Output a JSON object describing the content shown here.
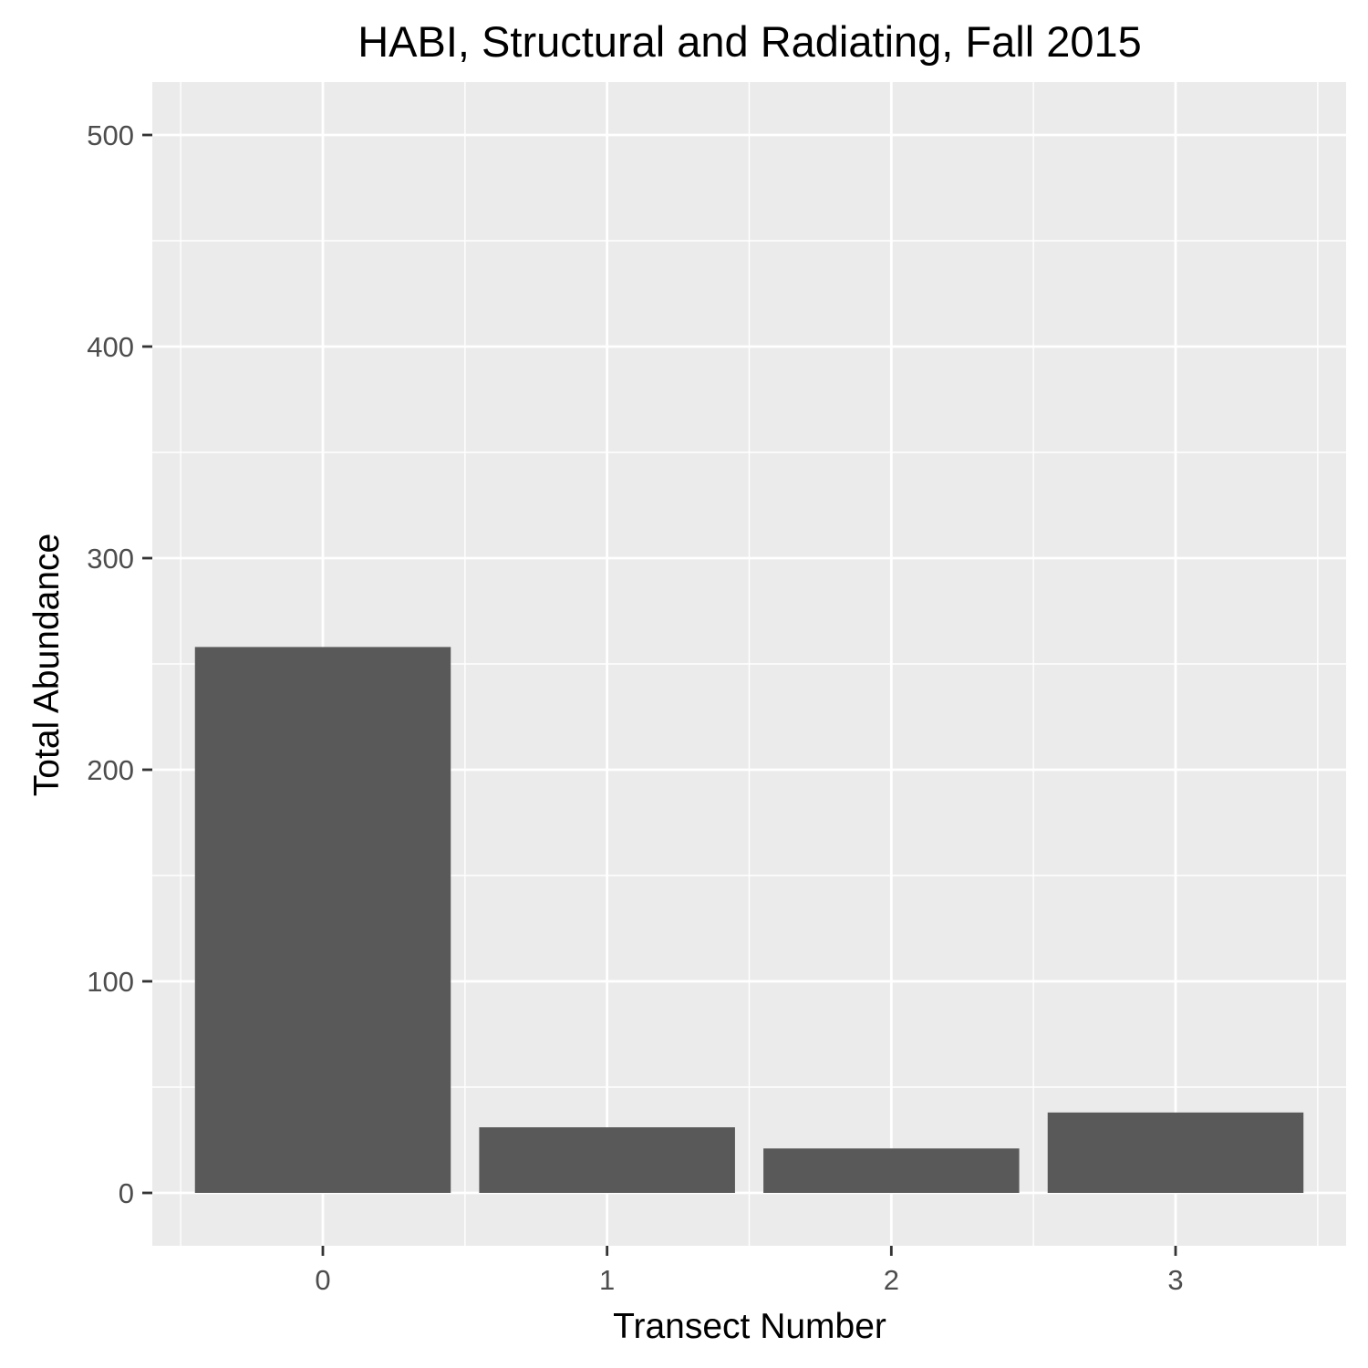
{
  "chart_data": {
    "type": "bar",
    "title": "HABI, Structural and Radiating, Fall 2015",
    "xlabel": "Transect Number",
    "ylabel": "Total Abundance",
    "categories": [
      "0",
      "1",
      "2",
      "3"
    ],
    "values": [
      258,
      31,
      21,
      38
    ],
    "yticks": [
      0,
      100,
      200,
      300,
      400,
      500
    ],
    "ylim": [
      -25,
      525
    ],
    "grid": true,
    "legend": "none",
    "colors": {
      "panel_background": "#ebebeb",
      "grid_line": "#ffffff",
      "bar_fill": "#595959",
      "tick_label": "#4d4d4d",
      "tick_mark": "#333333",
      "text": "#000000"
    }
  }
}
